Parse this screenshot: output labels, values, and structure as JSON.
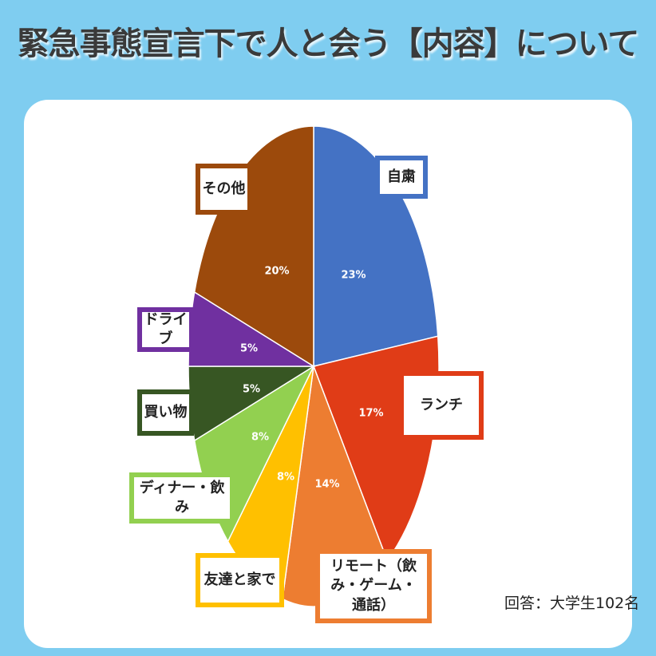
{
  "title": "緊急事態宣言下で人と会う【内容】について",
  "note": "回答：大学生102名",
  "chart_data": {
    "type": "pie",
    "title": "緊急事態宣言下で人と会う【内容】について",
    "unit": "%",
    "slices": [
      {
        "label": "自粛",
        "value": 23,
        "display": "23%",
        "color": "#4472c4"
      },
      {
        "label": "ランチ",
        "value": 17,
        "display": "17%",
        "color": "#e03c17"
      },
      {
        "label": "リモート（飲み・ゲーム・通話）",
        "value": 14,
        "display": "14%",
        "color": "#ed7d31"
      },
      {
        "label": "友達と家で",
        "value": 8,
        "display": "8%",
        "color": "#ffc000"
      },
      {
        "label": "ディナー・飲み",
        "value": 8,
        "display": "8%",
        "color": "#92d050"
      },
      {
        "label": "買い物",
        "value": 5,
        "display": "5%",
        "color": "#375623"
      },
      {
        "label": "ドライブ",
        "value": 5,
        "display": "5%",
        "color": "#7030a0"
      },
      {
        "label": "その他",
        "value": 20,
        "display": "20%",
        "color": "#9c4a0c"
      }
    ],
    "start": "top",
    "direction": "clockwise",
    "legend": "callout labels"
  }
}
